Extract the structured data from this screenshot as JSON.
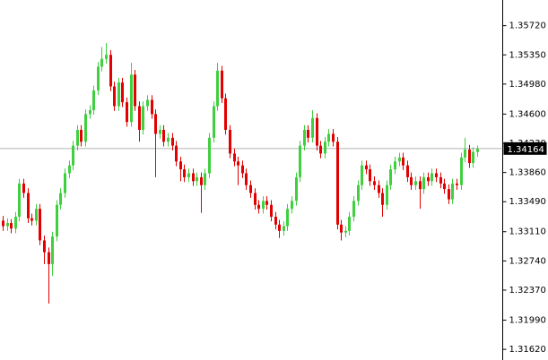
{
  "chart_data": {
    "type": "candlestick",
    "ylim": [
      1.31485,
      1.36045
    ],
    "yticks": [
      {
        "value": 1.3572,
        "label": "1.35720"
      },
      {
        "value": 1.3535,
        "label": "1.35350"
      },
      {
        "value": 1.3498,
        "label": "1.34980"
      },
      {
        "value": 1.346,
        "label": "1.34600"
      },
      {
        "value": 1.3423,
        "label": "1.34230"
      },
      {
        "value": 1.3386,
        "label": "1.33860"
      },
      {
        "value": 1.3349,
        "label": "1.33490"
      },
      {
        "value": 1.3311,
        "label": "1.33110"
      },
      {
        "value": 1.3274,
        "label": "1.32740"
      },
      {
        "value": 1.3237,
        "label": "1.32370"
      },
      {
        "value": 1.3199,
        "label": "1.31990"
      },
      {
        "value": 1.3162,
        "label": "1.31620"
      }
    ],
    "current_price": 1.34164,
    "up_color": "#3fcf3f",
    "down_color": "#e30000",
    "ohlc": [
      [
        1.3325,
        1.3331,
        1.3312,
        1.3318
      ],
      [
        1.3318,
        1.3328,
        1.3312,
        1.3322
      ],
      [
        1.3322,
        1.3327,
        1.3309,
        1.3315
      ],
      [
        1.3315,
        1.3336,
        1.3309,
        1.333
      ],
      [
        1.333,
        1.3378,
        1.3324,
        1.3372
      ],
      [
        1.3372,
        1.3378,
        1.3354,
        1.336
      ],
      [
        1.336,
        1.3366,
        1.3322,
        1.3328
      ],
      [
        1.3328,
        1.3334,
        1.3319,
        1.3325
      ],
      [
        1.3325,
        1.3346,
        1.3319,
        1.334
      ],
      [
        1.334,
        1.3346,
        1.3294,
        1.33
      ],
      [
        1.33,
        1.3306,
        1.327,
        1.3285
      ],
      [
        1.3285,
        1.3291,
        1.322,
        1.327
      ],
      [
        1.327,
        1.3311,
        1.3255,
        1.3305
      ],
      [
        1.3305,
        1.3351,
        1.3299,
        1.3345
      ],
      [
        1.3345,
        1.3366,
        1.3339,
        1.336
      ],
      [
        1.336,
        1.3391,
        1.3354,
        1.3385
      ],
      [
        1.3385,
        1.3401,
        1.3379,
        1.3395
      ],
      [
        1.3395,
        1.3426,
        1.3389,
        1.342
      ],
      [
        1.342,
        1.3446,
        1.3414,
        1.344
      ],
      [
        1.344,
        1.3446,
        1.3419,
        1.3425
      ],
      [
        1.3425,
        1.3466,
        1.3419,
        1.346
      ],
      [
        1.346,
        1.3471,
        1.3454,
        1.3465
      ],
      [
        1.3465,
        1.3496,
        1.3459,
        1.349
      ],
      [
        1.349,
        1.3526,
        1.3484,
        1.352
      ],
      [
        1.352,
        1.3545,
        1.3514,
        1.353
      ],
      [
        1.353,
        1.355,
        1.3524,
        1.3535
      ],
      [
        1.3535,
        1.3541,
        1.3489,
        1.3495
      ],
      [
        1.3495,
        1.3501,
        1.3464,
        1.347
      ],
      [
        1.347,
        1.3506,
        1.3464,
        1.35
      ],
      [
        1.35,
        1.3506,
        1.3469,
        1.3475
      ],
      [
        1.3475,
        1.3481,
        1.3444,
        1.345
      ],
      [
        1.345,
        1.3525,
        1.3444,
        1.351
      ],
      [
        1.351,
        1.3516,
        1.3464,
        1.347
      ],
      [
        1.347,
        1.3476,
        1.3425,
        1.344
      ],
      [
        1.344,
        1.3476,
        1.3434,
        1.347
      ],
      [
        1.347,
        1.3484,
        1.3464,
        1.3478
      ],
      [
        1.3478,
        1.3484,
        1.3454,
        1.346
      ],
      [
        1.346,
        1.3466,
        1.338,
        1.3435
      ],
      [
        1.3435,
        1.3446,
        1.3429,
        1.344
      ],
      [
        1.344,
        1.3446,
        1.3419,
        1.3425
      ],
      [
        1.3425,
        1.3436,
        1.3419,
        1.343
      ],
      [
        1.343,
        1.3436,
        1.3414,
        1.342
      ],
      [
        1.342,
        1.3426,
        1.3394,
        1.34
      ],
      [
        1.34,
        1.3406,
        1.3375,
        1.339
      ],
      [
        1.339,
        1.3396,
        1.3374,
        1.338
      ],
      [
        1.338,
        1.3391,
        1.3374,
        1.3385
      ],
      [
        1.3385,
        1.3391,
        1.3369,
        1.3375
      ],
      [
        1.3375,
        1.3386,
        1.3369,
        1.338
      ],
      [
        1.338,
        1.3386,
        1.3335,
        1.337
      ],
      [
        1.337,
        1.3391,
        1.3364,
        1.3385
      ],
      [
        1.3385,
        1.3436,
        1.3379,
        1.343
      ],
      [
        1.343,
        1.3476,
        1.3424,
        1.347
      ],
      [
        1.347,
        1.3525,
        1.3464,
        1.3515
      ],
      [
        1.3515,
        1.3521,
        1.3474,
        1.348
      ],
      [
        1.348,
        1.3486,
        1.3434,
        1.344
      ],
      [
        1.344,
        1.3446,
        1.3404,
        1.341
      ],
      [
        1.341,
        1.3416,
        1.3394,
        1.34
      ],
      [
        1.34,
        1.3406,
        1.337,
        1.3395
      ],
      [
        1.3395,
        1.3401,
        1.3379,
        1.3385
      ],
      [
        1.3385,
        1.3391,
        1.3364,
        1.337
      ],
      [
        1.337,
        1.3376,
        1.3354,
        1.336
      ],
      [
        1.336,
        1.3366,
        1.3339,
        1.3345
      ],
      [
        1.3345,
        1.3351,
        1.3334,
        1.334
      ],
      [
        1.334,
        1.3356,
        1.3334,
        1.335
      ],
      [
        1.335,
        1.3356,
        1.3339,
        1.3345
      ],
      [
        1.3345,
        1.3351,
        1.3324,
        1.333
      ],
      [
        1.333,
        1.3336,
        1.3314,
        1.332
      ],
      [
        1.332,
        1.3326,
        1.3303,
        1.3312
      ],
      [
        1.3312,
        1.3324,
        1.3306,
        1.3318
      ],
      [
        1.3318,
        1.3346,
        1.3312,
        1.334
      ],
      [
        1.334,
        1.3356,
        1.3334,
        1.335
      ],
      [
        1.335,
        1.3386,
        1.3344,
        1.338
      ],
      [
        1.338,
        1.3426,
        1.3374,
        1.342
      ],
      [
        1.342,
        1.3446,
        1.3414,
        1.344
      ],
      [
        1.344,
        1.3446,
        1.3424,
        1.343
      ],
      [
        1.343,
        1.3465,
        1.3424,
        1.3455
      ],
      [
        1.3455,
        1.3461,
        1.3414,
        1.342
      ],
      [
        1.342,
        1.3426,
        1.3404,
        1.341
      ],
      [
        1.341,
        1.3431,
        1.3404,
        1.3425
      ],
      [
        1.3425,
        1.3441,
        1.3419,
        1.3435
      ],
      [
        1.3435,
        1.3441,
        1.3419,
        1.3425
      ],
      [
        1.3425,
        1.3431,
        1.3314,
        1.332
      ],
      [
        1.332,
        1.3326,
        1.33,
        1.331
      ],
      [
        1.331,
        1.3318,
        1.3304,
        1.3312
      ],
      [
        1.3312,
        1.3336,
        1.3306,
        1.333
      ],
      [
        1.333,
        1.3356,
        1.3324,
        1.335
      ],
      [
        1.335,
        1.3376,
        1.3344,
        1.337
      ],
      [
        1.337,
        1.3401,
        1.3364,
        1.3395
      ],
      [
        1.3395,
        1.3401,
        1.3384,
        1.339
      ],
      [
        1.339,
        1.3396,
        1.3369,
        1.3375
      ],
      [
        1.3375,
        1.3381,
        1.3364,
        1.337
      ],
      [
        1.337,
        1.3376,
        1.3354,
        1.336
      ],
      [
        1.336,
        1.3366,
        1.333,
        1.3345
      ],
      [
        1.3345,
        1.3376,
        1.3339,
        1.337
      ],
      [
        1.337,
        1.3396,
        1.3364,
        1.339
      ],
      [
        1.339,
        1.3406,
        1.3384,
        1.34
      ],
      [
        1.34,
        1.3411,
        1.3394,
        1.3405
      ],
      [
        1.3405,
        1.3411,
        1.3389,
        1.3395
      ],
      [
        1.3395,
        1.3401,
        1.3374,
        1.338
      ],
      [
        1.338,
        1.3386,
        1.3364,
        1.337
      ],
      [
        1.337,
        1.3381,
        1.3364,
        1.3375
      ],
      [
        1.3375,
        1.3381,
        1.334,
        1.3365
      ],
      [
        1.3365,
        1.3386,
        1.3359,
        1.338
      ],
      [
        1.338,
        1.3386,
        1.3369,
        1.3375
      ],
      [
        1.3375,
        1.3391,
        1.3369,
        1.3385
      ],
      [
        1.3385,
        1.3391,
        1.3374,
        1.338
      ],
      [
        1.338,
        1.3386,
        1.3366,
        1.3372
      ],
      [
        1.3372,
        1.3378,
        1.3359,
        1.3365
      ],
      [
        1.3365,
        1.3371,
        1.3346,
        1.3352
      ],
      [
        1.3352,
        1.3378,
        1.3346,
        1.3372
      ],
      [
        1.3372,
        1.3378,
        1.3364,
        1.337
      ],
      [
        1.337,
        1.3411,
        1.3364,
        1.3405
      ],
      [
        1.3405,
        1.343,
        1.3399,
        1.3415
      ],
      [
        1.3415,
        1.3421,
        1.3392,
        1.3398
      ],
      [
        1.3398,
        1.3418,
        1.3392,
        1.3412
      ],
      [
        1.3412,
        1.342,
        1.3406,
        1.3416
      ]
    ]
  }
}
